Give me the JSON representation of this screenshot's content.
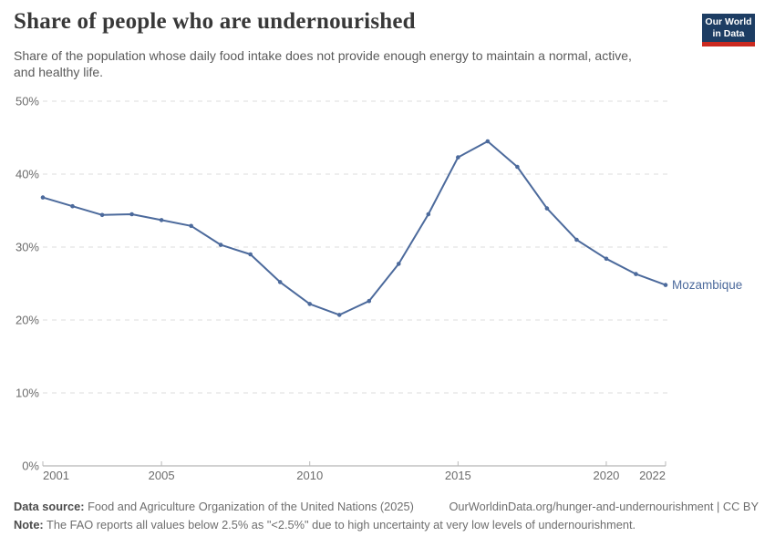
{
  "header": {
    "title": "Share of people who are undernourished",
    "subtitle_lines": [
      "Share of the population whose daily food intake does not provide enough energy to maintain a normal, active,",
      "and healthy life."
    ],
    "logo": {
      "line1": "Our World",
      "line2": "in Data",
      "bg_color": "#1d3d63",
      "accent_color": "#cb2a20"
    }
  },
  "chart_data": {
    "type": "line",
    "title": "Share of people who are undernourished",
    "xlabel": "",
    "ylabel": "",
    "x": [
      2001,
      2002,
      2003,
      2004,
      2005,
      2006,
      2007,
      2008,
      2009,
      2010,
      2011,
      2012,
      2013,
      2014,
      2015,
      2016,
      2017,
      2018,
      2019,
      2020,
      2021,
      2022
    ],
    "series": [
      {
        "name": "Mozambique",
        "color": "#4c6a9c",
        "values": [
          36.8,
          35.6,
          34.4,
          34.5,
          33.7,
          32.9,
          30.3,
          29.0,
          25.2,
          22.2,
          20.7,
          22.6,
          27.7,
          34.5,
          42.3,
          44.5,
          41.0,
          35.3,
          31.0,
          28.4,
          26.3,
          24.8
        ]
      }
    ],
    "xlim": [
      2001,
      2022
    ],
    "ylim": [
      0,
      50
    ],
    "x_ticks": [
      2001,
      2005,
      2010,
      2015,
      2020,
      2022
    ],
    "y_ticks": [
      0,
      10,
      20,
      30,
      40,
      50
    ],
    "y_tick_suffix": "%",
    "grid": "horizontal dashed",
    "legend_position": "line-end label"
  },
  "footer": {
    "data_source_label": "Data source:",
    "data_source_value": " Food and Agriculture Organization of the United Nations (2025)",
    "link": "OurWorldinData.org/hunger-and-undernourishment | CC BY",
    "note_label": "Note:",
    "note_value": " The FAO reports all values below 2.5% as \"<2.5%\" due to high uncertainty at very low levels of undernourishment."
  }
}
